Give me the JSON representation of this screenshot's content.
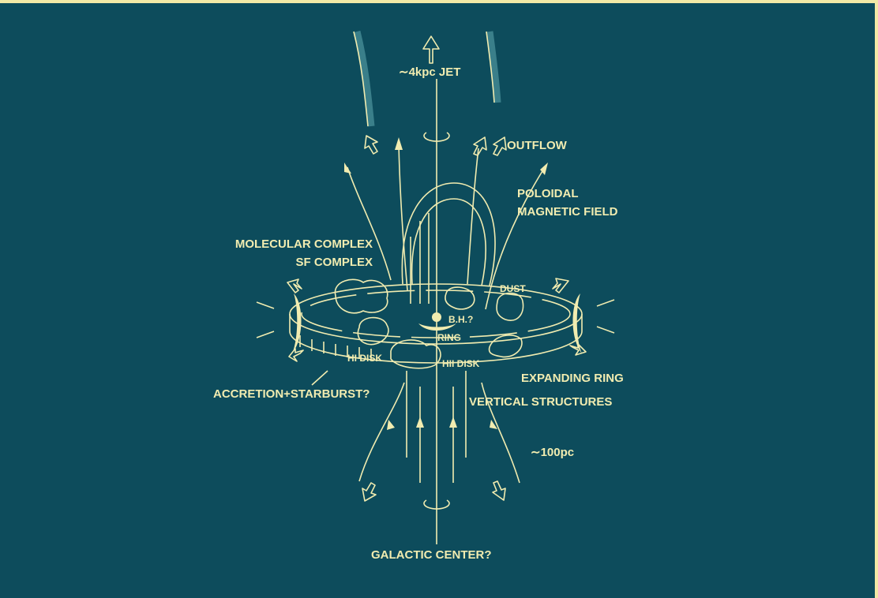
{
  "labels": {
    "jet": "∼4kpc JET",
    "outflow": "OUTFLOW",
    "poloidal_field": [
      "POLOIDAL",
      "MAGNETIC FIELD"
    ],
    "molecular_complex": [
      "MOLECULAR COMPLEX",
      "SF COMPLEX"
    ],
    "dust": "DUST",
    "black_hole": "B.H.?",
    "ring": "RING",
    "hi_disk": "HI DISK",
    "hii_disk": "HII DISK",
    "expanding_ring": "EXPANDING RING",
    "accretion": "ACCRETION+STARBURST?",
    "vertical_structures": "VERTICAL STRUCTURES",
    "scale": "∼100pc",
    "galactic_center": "GALACTIC CENTER?"
  }
}
